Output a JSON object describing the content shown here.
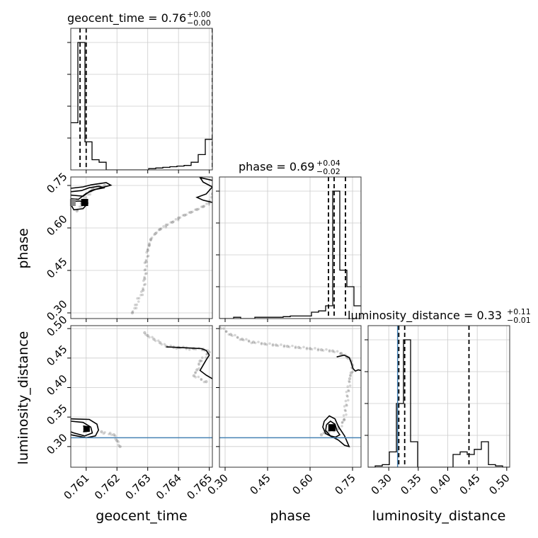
{
  "chart_data": {
    "type": "corner",
    "parameters": [
      "geocent_time",
      "phase",
      "luminosity_distance"
    ],
    "axis_labels": [
      "geocent_time",
      "phase",
      "luminosity_distance"
    ],
    "titles": [
      {
        "param": "geocent_time",
        "text": "geocent_time = 0.76",
        "sup": "+0.00",
        "sub": "−0.00"
      },
      {
        "param": "phase",
        "text": "phase = 0.69",
        "sup": "+0.04",
        "sub": "−0.02"
      },
      {
        "param": "luminosity_distance",
        "text": "luminosity_distance = 0.33",
        "sup": "+0.11",
        "sub": "−0.01"
      }
    ],
    "ranges": {
      "geocent_time": [
        0.7605,
        0.7651
      ],
      "phase": [
        0.28,
        0.78
      ],
      "luminosity_distance": [
        0.265,
        0.505
      ]
    },
    "ticks": {
      "geocent_time": [
        0.761,
        0.762,
        0.763,
        0.764,
        0.765
      ],
      "phase": [
        0.3,
        0.45,
        0.6,
        0.75
      ],
      "luminosity_distance": [
        0.3,
        0.35,
        0.4,
        0.45,
        0.5
      ]
    },
    "tick_labels": {
      "geocent_time": [
        "0.761",
        "0.762",
        "0.763",
        "0.764",
        "0.765"
      ],
      "phase": [
        "0.30",
        "0.45",
        "0.60",
        "0.75"
      ],
      "luminosity_distance": [
        "0.30",
        "0.35",
        "0.40",
        "0.45",
        "0.50"
      ]
    },
    "quantiles": {
      "geocent_time": [
        0.7608,
        0.761,
        0.7651
      ],
      "phase": [
        0.665,
        0.685,
        0.725
      ],
      "luminosity_distance": [
        0.317,
        0.327,
        0.436
      ]
    },
    "truths": {
      "luminosity_distance": 0.315
    },
    "histograms": {
      "geocent_time": {
        "edges": [
          0.7605,
          0.76073,
          0.76096,
          0.76119,
          0.76142,
          0.76165,
          0.76188,
          0.76211,
          0.76234,
          0.76257,
          0.7628,
          0.76303,
          0.76326,
          0.76349,
          0.76372,
          0.76395,
          0.76418,
          0.76441,
          0.76464,
          0.76487,
          0.7651
        ],
        "counts": [
          0.37,
          1.0,
          0.22,
          0.08,
          0.06,
          0.0,
          0.0,
          0.0,
          0.0,
          0.0,
          0.0,
          0.01,
          0.015,
          0.02,
          0.025,
          0.03,
          0.035,
          0.06,
          0.12,
          0.24
        ]
      },
      "phase": {
        "edges": [
          0.28,
          0.305,
          0.33,
          0.355,
          0.38,
          0.405,
          0.43,
          0.455,
          0.48,
          0.505,
          0.53,
          0.555,
          0.58,
          0.605,
          0.63,
          0.655,
          0.68,
          0.705,
          0.73,
          0.755,
          0.78
        ],
        "counts": [
          0.0,
          0.0,
          0.01,
          0.0,
          0.0,
          0.01,
          0.01,
          0.01,
          0.01,
          0.015,
          0.02,
          0.02,
          0.02,
          0.05,
          0.06,
          0.1,
          1.0,
          0.38,
          0.25,
          0.1
        ]
      },
      "luminosity_distance": {
        "edges": [
          0.265,
          0.277,
          0.289,
          0.301,
          0.313,
          0.325,
          0.337,
          0.349,
          0.361,
          0.373,
          0.385,
          0.397,
          0.409,
          0.421,
          0.433,
          0.445,
          0.457,
          0.469,
          0.481,
          0.493,
          0.505
        ],
        "counts": [
          0.0,
          0.01,
          0.02,
          0.12,
          0.5,
          1.0,
          0.2,
          0.0,
          0.0,
          0.0,
          0.0,
          0.0,
          0.1,
          0.12,
          0.1,
          0.14,
          0.2,
          0.02,
          0.01,
          0.0
        ]
      }
    },
    "panels_2d": {
      "phase_vs_geocent_time": {
        "samples": [
          [
            0.7625,
            0.3
          ],
          [
            0.76285,
            0.38
          ],
          [
            0.7629,
            0.42
          ],
          [
            0.76295,
            0.48
          ],
          [
            0.763,
            0.52
          ],
          [
            0.76305,
            0.54
          ],
          [
            0.7631,
            0.56
          ],
          [
            0.76325,
            0.58
          ],
          [
            0.7634,
            0.595
          ],
          [
            0.7636,
            0.61
          ],
          [
            0.7638,
            0.62
          ],
          [
            0.764,
            0.635
          ],
          [
            0.7642,
            0.645
          ],
          [
            0.7644,
            0.655
          ],
          [
            0.7646,
            0.665
          ],
          [
            0.7648,
            0.675
          ],
          [
            0.765,
            0.69
          ],
          [
            0.7651,
            0.72
          ],
          [
            0.7607,
            0.66
          ],
          [
            0.7612,
            0.74
          ],
          [
            0.7616,
            0.75
          ]
        ],
        "contours": [
          [
            [
              0.7605,
              0.74
            ],
            [
              0.7609,
              0.745
            ],
            [
              0.76115,
              0.752
            ],
            [
              0.7614,
              0.756
            ],
            [
              0.76165,
              0.76
            ],
            [
              0.7618,
              0.751
            ],
            [
              0.7615,
              0.742
            ],
            [
              0.76115,
              0.732
            ],
            [
              0.7609,
              0.712
            ],
            [
              0.7606,
              0.715
            ],
            [
              0.7605,
              0.716
            ]
          ],
          [
            [
              0.7605,
              0.728
            ],
            [
              0.76085,
              0.732
            ],
            [
              0.7611,
              0.742
            ],
            [
              0.7614,
              0.747
            ],
            [
              0.7616,
              0.742
            ],
            [
              0.7613,
              0.736
            ],
            [
              0.761,
              0.722
            ],
            [
              0.76075,
              0.701
            ],
            [
              0.7605,
              0.703
            ]
          ],
          [
            [
              0.7605,
              0.683
            ],
            [
              0.7606,
              0.664
            ],
            [
              0.7609,
              0.668
            ],
            [
              0.76105,
              0.687
            ],
            [
              0.7608,
              0.695
            ],
            [
              0.7605,
              0.694
            ]
          ],
          [
            [
              0.7651,
              0.768
            ],
            [
              0.7647,
              0.778
            ],
            [
              0.7648,
              0.762
            ],
            [
              0.7651,
              0.745
            ],
            [
              0.7649,
              0.72
            ],
            [
              0.7646,
              0.708
            ],
            [
              0.7648,
              0.698
            ],
            [
              0.7651,
              0.69
            ]
          ]
        ]
      },
      "luminosity_distance_vs_geocent_time": {
        "samples": [
          [
            0.7629,
            0.493
          ],
          [
            0.763,
            0.488
          ],
          [
            0.7632,
            0.482
          ],
          [
            0.7634,
            0.476
          ],
          [
            0.7636,
            0.47
          ],
          [
            0.764,
            0.468
          ],
          [
            0.7645,
            0.466
          ],
          [
            0.7648,
            0.465
          ],
          [
            0.765,
            0.46
          ],
          [
            0.7647,
            0.445
          ],
          [
            0.7646,
            0.43
          ],
          [
            0.7645,
            0.42
          ],
          [
            0.7649,
            0.41
          ],
          [
            0.7621,
            0.3
          ],
          [
            0.762,
            0.31
          ],
          [
            0.7619,
            0.32
          ],
          [
            0.7615,
            0.325
          ]
        ],
        "contours": [
          [
            [
              0.7605,
              0.347
            ],
            [
              0.7611,
              0.346
            ],
            [
              0.76135,
              0.338
            ],
            [
              0.7614,
              0.328
            ],
            [
              0.7613,
              0.318
            ],
            [
              0.761,
              0.315
            ],
            [
              0.7607,
              0.318
            ],
            [
              0.7605,
              0.32
            ]
          ],
          [
            [
              0.7605,
              0.343
            ],
            [
              0.7609,
              0.341
            ],
            [
              0.76115,
              0.333
            ],
            [
              0.7612,
              0.323
            ],
            [
              0.76095,
              0.318
            ],
            [
              0.7606,
              0.323
            ],
            [
              0.7605,
              0.325
            ]
          ],
          [
            [
              0.7609,
              0.335
            ],
            [
              0.7611,
              0.333
            ],
            [
              0.7611,
              0.326
            ],
            [
              0.7609,
              0.325
            ]
          ],
          [
            [
              0.7636,
              0.469
            ],
            [
              0.764,
              0.468
            ],
            [
              0.7644,
              0.467
            ],
            [
              0.76475,
              0.466
            ],
            [
              0.7649,
              0.463
            ],
            [
              0.765,
              0.455
            ],
            [
              0.7649,
              0.447
            ],
            [
              0.7648,
              0.438
            ],
            [
              0.7647,
              0.429
            ],
            [
              0.7649,
              0.421
            ],
            [
              0.7651,
              0.415
            ]
          ]
        ]
      },
      "luminosity_distance_vs_phase": {
        "samples": [
          [
            0.28,
            0.503
          ],
          [
            0.32,
            0.49
          ],
          [
            0.36,
            0.482
          ],
          [
            0.4,
            0.477
          ],
          [
            0.44,
            0.474
          ],
          [
            0.48,
            0.472
          ],
          [
            0.52,
            0.47
          ],
          [
            0.56,
            0.468
          ],
          [
            0.6,
            0.466
          ],
          [
            0.64,
            0.464
          ],
          [
            0.68,
            0.462
          ],
          [
            0.71,
            0.458
          ],
          [
            0.73,
            0.452
          ],
          [
            0.745,
            0.445
          ],
          [
            0.75,
            0.438
          ],
          [
            0.745,
            0.425
          ],
          [
            0.74,
            0.415
          ],
          [
            0.72,
            0.345
          ],
          [
            0.7,
            0.33
          ],
          [
            0.66,
            0.325
          ],
          [
            0.64,
            0.32
          ]
        ],
        "contours": [
          [
            [
              0.65,
              0.343
            ],
            [
              0.668,
              0.352
            ],
            [
              0.688,
              0.347
            ],
            [
              0.7,
              0.334
            ],
            [
              0.722,
              0.318
            ],
            [
              0.738,
              0.3
            ],
            [
              0.722,
              0.302
            ],
            [
              0.7,
              0.311
            ],
            [
              0.68,
              0.316
            ],
            [
              0.655,
              0.322
            ],
            [
              0.645,
              0.333
            ],
            [
              0.65,
              0.343
            ]
          ],
          [
            [
              0.658,
              0.337
            ],
            [
              0.672,
              0.343
            ],
            [
              0.688,
              0.338
            ],
            [
              0.695,
              0.327
            ],
            [
              0.705,
              0.32
            ],
            [
              0.69,
              0.316
            ],
            [
              0.672,
              0.318
            ],
            [
              0.655,
              0.327
            ],
            [
              0.658,
              0.337
            ]
          ],
          [
            [
              0.694,
              0.452
            ],
            [
              0.72,
              0.455
            ],
            [
              0.738,
              0.451
            ],
            [
              0.745,
              0.443
            ],
            [
              0.752,
              0.432
            ],
            [
              0.76,
              0.428
            ],
            [
              0.77,
              0.43
            ],
            [
              0.78,
              0.429
            ]
          ]
        ]
      }
    }
  }
}
